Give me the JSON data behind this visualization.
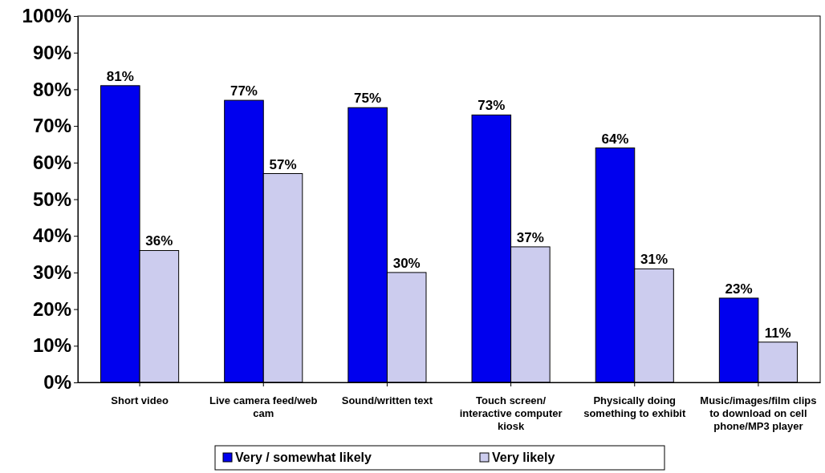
{
  "chart_data": {
    "type": "bar",
    "categories": [
      "Short video",
      "Live camera feed/web cam",
      "Sound/written text",
      "Touch screen/interactive computer kiosk",
      "Physically doing something to exhibit",
      "Music/images/film clips to download on cell phone/MP3 player"
    ],
    "series": [
      {
        "name": "Very / somewhat likely",
        "color": "#0000ee",
        "values": [
          81,
          77,
          75,
          73,
          64,
          23
        ],
        "value_labels": [
          "81%",
          "77%",
          "75%",
          "73%",
          "64%",
          "23%"
        ]
      },
      {
        "name": "Very likely",
        "color": "#ccccee",
        "values": [
          36,
          57,
          30,
          37,
          31,
          11
        ],
        "value_labels": [
          "36%",
          "57%",
          "30%",
          "37%",
          "31%",
          "11%"
        ]
      }
    ],
    "ylim": [
      0,
      100
    ],
    "yticks": [
      {
        "value": 0,
        "label": "0%"
      },
      {
        "value": 10,
        "label": "10%"
      },
      {
        "value": 20,
        "label": "20%"
      },
      {
        "value": 30,
        "label": "30%"
      },
      {
        "value": 40,
        "label": "40%"
      },
      {
        "value": 50,
        "label": "50%"
      },
      {
        "value": 60,
        "label": "60%"
      },
      {
        "value": 70,
        "label": "70%"
      },
      {
        "value": 80,
        "label": "80%"
      },
      {
        "value": 90,
        "label": "90%"
      },
      {
        "value": 100,
        "label": "100%"
      }
    ],
    "grid": false,
    "legend": "bottom"
  }
}
